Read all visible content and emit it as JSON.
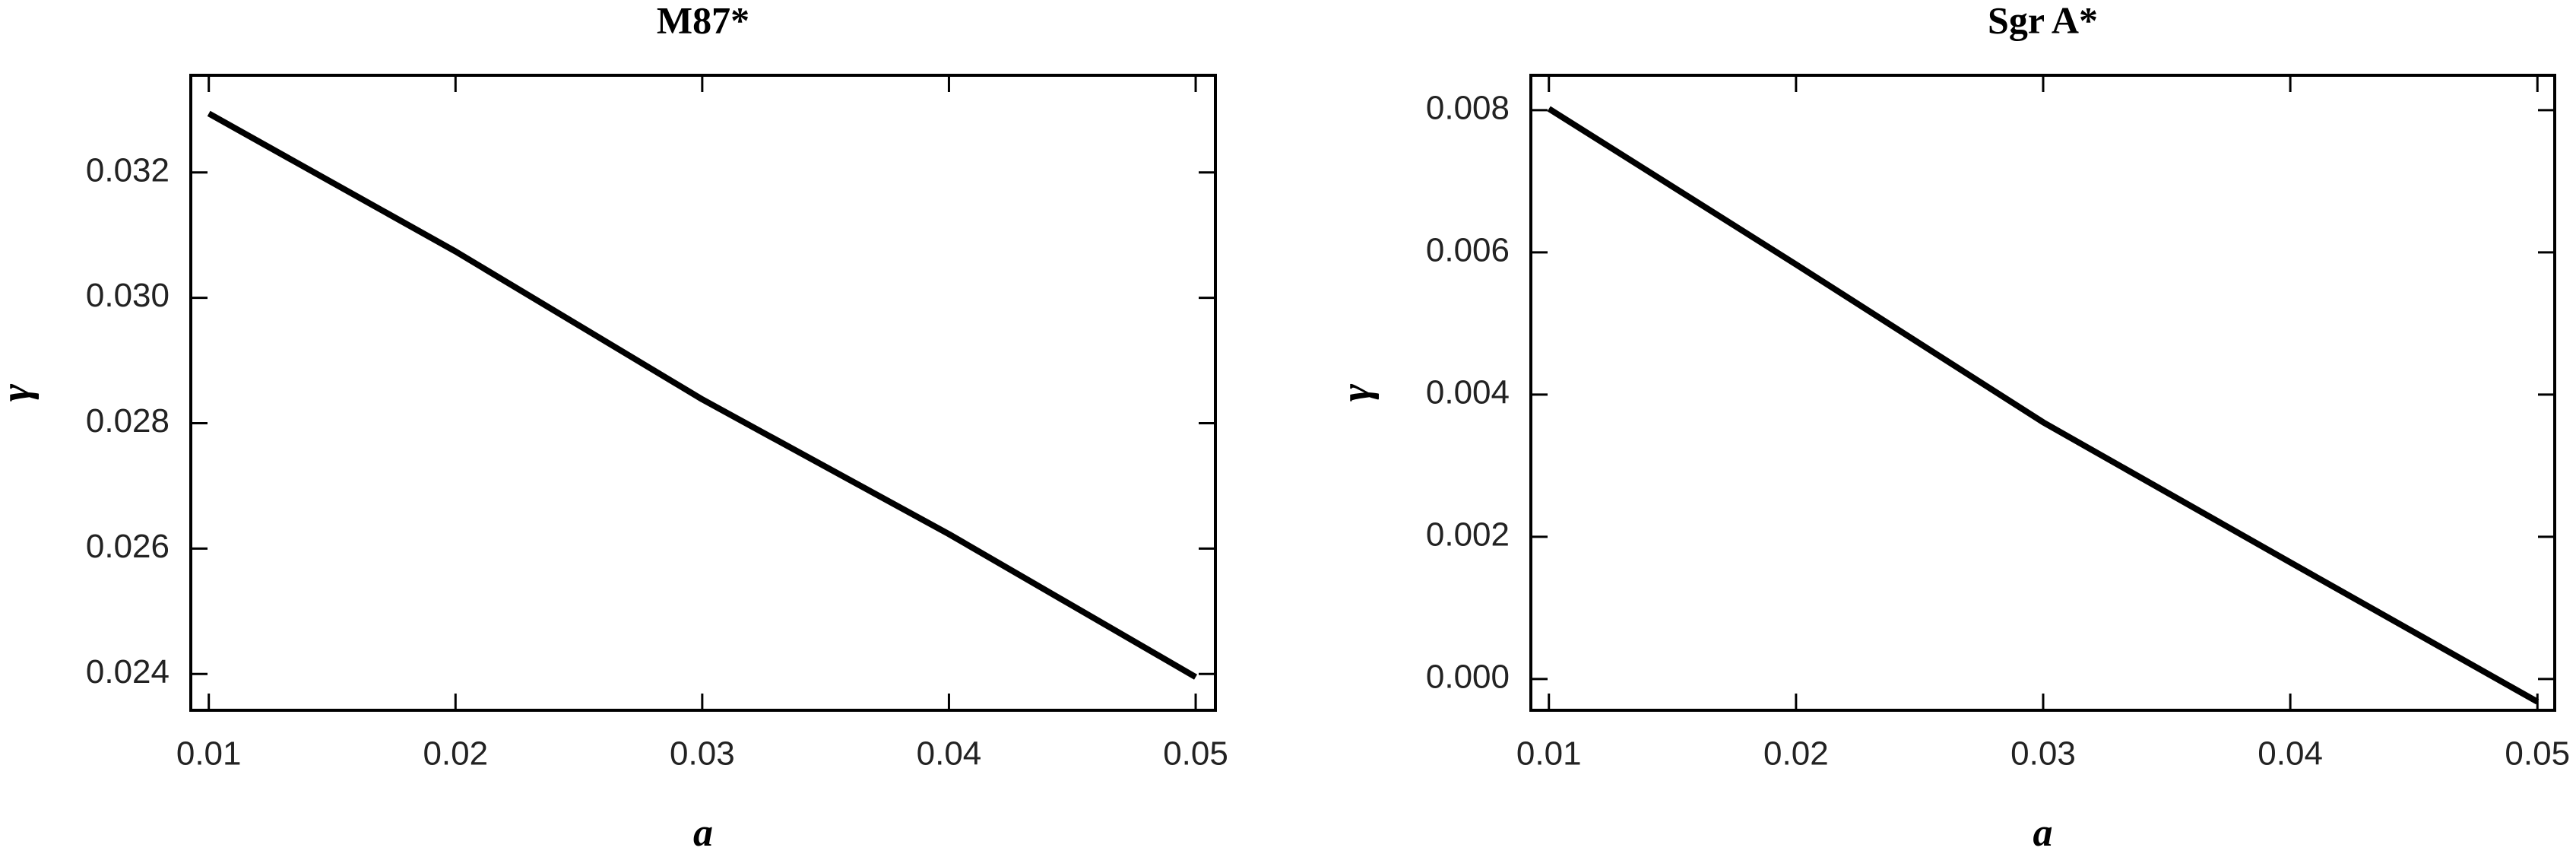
{
  "chart_data": [
    {
      "type": "line",
      "title": "M87*",
      "xlabel": "a",
      "ylabel": "γ",
      "x": [
        0.01,
        0.02,
        0.03,
        0.04,
        0.05
      ],
      "series": [
        {
          "color": "#000000",
          "values": [
            0.03294,
            0.03074,
            0.02838,
            0.02623,
            0.02395
          ]
        }
      ],
      "xlim": [
        0.00927,
        0.0508
      ],
      "ylim": [
        0.02342,
        0.03355
      ],
      "xticks": [
        0.01,
        0.02,
        0.03,
        0.04,
        0.05
      ],
      "yticks": [
        0.024,
        0.026,
        0.028,
        {
          "value": 0.03,
          "label": "0.030"
        },
        0.032
      ]
    },
    {
      "type": "line",
      "title": "Sgr A*",
      "xlabel": "a",
      "ylabel": "γ",
      "x": [
        0.01,
        0.02,
        0.03,
        0.04,
        0.05
      ],
      "series": [
        {
          "color": "#000000",
          "values": [
            0.00802,
            0.00583,
            0.00361,
            0.00164,
            -0.00032
          ]
        }
      ],
      "xlim": [
        0.00927,
        0.0507
      ],
      "ylim": [
        -0.00044,
        0.00849
      ],
      "xticks": [
        0.01,
        0.02,
        0.03,
        0.04,
        0.05
      ],
      "yticks": [
        {
          "value": 0,
          "label": "0.000"
        },
        0.002,
        0.004,
        0.006,
        0.008
      ]
    }
  ]
}
